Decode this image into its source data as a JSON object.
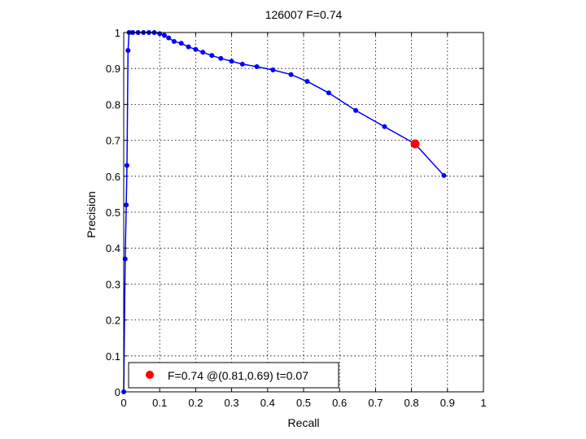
{
  "chart_data": {
    "type": "line",
    "title": "126007 F=0.74",
    "xlabel": "Recall",
    "ylabel": "Precision",
    "xlim": [
      0,
      1
    ],
    "ylim": [
      0,
      1
    ],
    "xticks": [
      "0",
      "0.1",
      "0.2",
      "0.3",
      "0.4",
      "0.5",
      "0.6",
      "0.7",
      "0.8",
      "0.9",
      "1"
    ],
    "yticks": [
      "0",
      "0.1",
      "0.2",
      "0.3",
      "0.4",
      "0.5",
      "0.6",
      "0.7",
      "0.8",
      "0.9",
      "1"
    ],
    "grid": true,
    "legend_position": "bottom-left",
    "series": [
      {
        "color": "#0000ff",
        "marker": "dot",
        "points": [
          [
            0.0,
            0.0
          ],
          [
            0.004,
            0.37
          ],
          [
            0.007,
            0.52
          ],
          [
            0.009,
            0.63
          ],
          [
            0.012,
            0.95
          ],
          [
            0.015,
            1.0
          ],
          [
            0.025,
            1.0
          ],
          [
            0.04,
            1.0
          ],
          [
            0.055,
            1.0
          ],
          [
            0.07,
            1.0
          ],
          [
            0.085,
            1.0
          ],
          [
            0.1,
            0.997
          ],
          [
            0.113,
            0.992
          ],
          [
            0.125,
            0.985
          ],
          [
            0.14,
            0.975
          ],
          [
            0.16,
            0.97
          ],
          [
            0.18,
            0.96
          ],
          [
            0.2,
            0.953
          ],
          [
            0.22,
            0.945
          ],
          [
            0.245,
            0.936
          ],
          [
            0.27,
            0.928
          ],
          [
            0.3,
            0.92
          ],
          [
            0.33,
            0.912
          ],
          [
            0.37,
            0.905
          ],
          [
            0.415,
            0.896
          ],
          [
            0.465,
            0.883
          ],
          [
            0.51,
            0.864
          ],
          [
            0.57,
            0.832
          ],
          [
            0.645,
            0.783
          ],
          [
            0.725,
            0.738
          ],
          [
            0.81,
            0.69
          ],
          [
            0.89,
            0.602
          ]
        ]
      }
    ],
    "highlight_point": {
      "x": 0.81,
      "y": 0.69,
      "color": "#ff0000"
    },
    "legend": {
      "label": "F=0.74 @(0.81,0.69) t=0.07"
    }
  }
}
